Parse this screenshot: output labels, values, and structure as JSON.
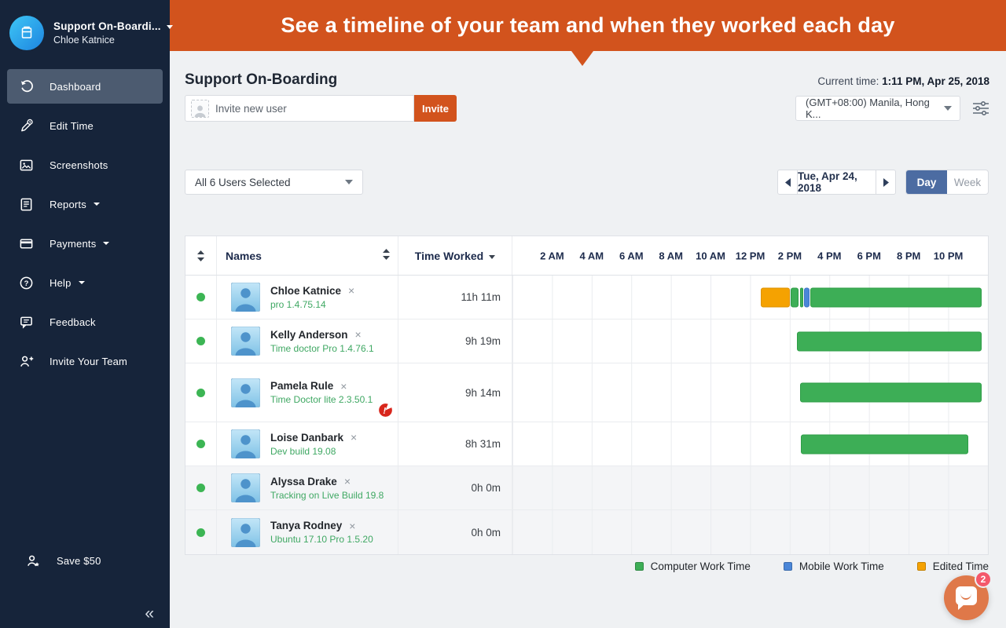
{
  "banner": {
    "text": "See a timeline of your team and when they worked each day"
  },
  "sidebar": {
    "company": "Support On-Boardi...",
    "user": "Chloe Katnice",
    "items": [
      {
        "label": "Dashboard",
        "icon": "history-icon",
        "active": true,
        "caret": false
      },
      {
        "label": "Edit Time",
        "icon": "edit-time-icon",
        "active": false,
        "caret": false
      },
      {
        "label": "Screenshots",
        "icon": "screenshots-icon",
        "active": false,
        "caret": false
      },
      {
        "label": "Reports",
        "icon": "reports-icon",
        "active": false,
        "caret": true
      },
      {
        "label": "Payments",
        "icon": "payments-icon",
        "active": false,
        "caret": true
      },
      {
        "label": "Help",
        "icon": "help-icon",
        "active": false,
        "caret": true
      },
      {
        "label": "Feedback",
        "icon": "feedback-icon",
        "active": false,
        "caret": false
      },
      {
        "label": "Invite Your Team",
        "icon": "invite-team-icon",
        "active": false,
        "caret": false
      }
    ],
    "footer_item": {
      "label": "Save $50",
      "icon": "person-star-icon"
    },
    "collapse_glyph": "«"
  },
  "header": {
    "title": "Support On-Boarding",
    "current_time_label": "Current time:",
    "current_time_value": "1:11 PM, Apr 25, 2018",
    "timezone": "(GMT+08:00) Manila, Hong K...",
    "invite_placeholder": "Invite new user",
    "invite_button": "Invite"
  },
  "controls": {
    "users_dropdown": "All 6 Users Selected",
    "date": "Tue, Apr 24, 2018",
    "day_label": "Day",
    "week_label": "Week"
  },
  "table": {
    "names_header": "Names",
    "time_worked_header": "Time Worked",
    "time_labels": [
      "2 AM",
      "4 AM",
      "6 AM",
      "8 AM",
      "10 AM",
      "12 PM",
      "2 PM",
      "4 PM",
      "6 PM",
      "8 PM",
      "10 PM"
    ],
    "rows": [
      {
        "name": "Chloe Katnice",
        "app": "pro 1.4.75.14",
        "time": "11h 11m",
        "online": true,
        "warning": false,
        "dim": false,
        "bars": [
          {
            "type": "edited",
            "start": 12.53,
            "end": 14.0
          },
          {
            "type": "computer",
            "start": 14.05,
            "end": 14.45
          },
          {
            "type": "computer",
            "start": 14.5,
            "end": 14.68
          },
          {
            "type": "mobile",
            "start": 14.72,
            "end": 15.0
          },
          {
            "type": "computer",
            "start": 15.05,
            "end": 23.68
          }
        ]
      },
      {
        "name": "Kelly Anderson",
        "app": "Time doctor Pro 1.4.76.1",
        "time": "9h 19m",
        "online": true,
        "warning": false,
        "dim": false,
        "bars": [
          {
            "type": "computer",
            "start": 14.38,
            "end": 23.68
          }
        ]
      },
      {
        "name": "Pamela Rule",
        "app": "Time Doctor lite 2.3.50.1",
        "time": "9h 14m",
        "online": true,
        "warning": true,
        "dim": false,
        "bars": [
          {
            "type": "computer",
            "start": 14.5,
            "end": 23.68
          }
        ]
      },
      {
        "name": "Loise Danbark",
        "app": "Dev build 19.08",
        "time": "8h 31m",
        "online": true,
        "warning": false,
        "dim": false,
        "bars": [
          {
            "type": "computer",
            "start": 14.55,
            "end": 23.0
          }
        ]
      },
      {
        "name": "Alyssa Drake",
        "app": "Tracking on Live Build 19.8",
        "time": "0h 0m",
        "online": true,
        "warning": false,
        "dim": true,
        "bars": []
      },
      {
        "name": "Tanya Rodney",
        "app": "Ubuntu 17.10 Pro 1.5.20",
        "time": "0h 0m",
        "online": true,
        "warning": false,
        "dim": true,
        "bars": []
      }
    ]
  },
  "legend": [
    {
      "label": "Computer Work Time",
      "type": "computer"
    },
    {
      "label": "Mobile Work Time",
      "type": "mobile"
    },
    {
      "label": "Edited Time",
      "type": "edited"
    }
  ],
  "chat": {
    "badge": "2"
  },
  "colors": {
    "accent_orange": "#D2531D",
    "computer": "#3DAE56",
    "mobile": "#4A86D8",
    "edited": "#F5A201",
    "day_active": "#4C6CA2",
    "online_dot": "#3CB554"
  }
}
